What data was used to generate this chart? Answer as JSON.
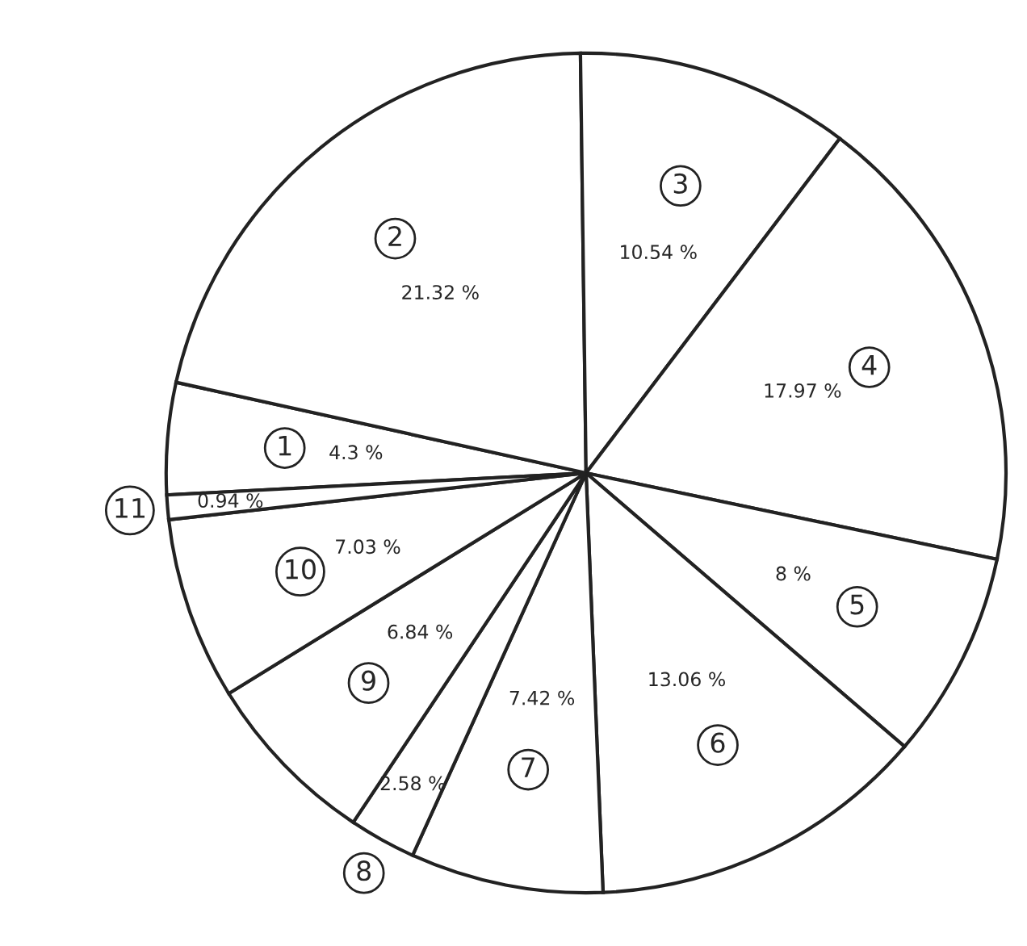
{
  "chart_data": {
    "type": "pie",
    "categories": [
      "1",
      "2",
      "3",
      "4",
      "5",
      "6",
      "7",
      "8",
      "9",
      "10",
      "11"
    ],
    "values": [
      4.3,
      21.32,
      10.54,
      17.97,
      8,
      13.06,
      7.42,
      2.58,
      6.84,
      7.03,
      0.94
    ],
    "colors": [
      "#ffffff",
      "#ffffff",
      "#ffffff",
      "#ffffff",
      "#ffffff",
      "#ffffff",
      "#ffffff",
      "#ffffff",
      "#ffffff",
      "#ffffff",
      "#ffffff"
    ],
    "value_labels": [
      "4.3 %",
      "21.32 %",
      "10.54 %",
      "17.97 %",
      "8 %",
      "13.06 %",
      "7.42 %",
      "2.58 %",
      "6.84 %",
      "7.03 %",
      "0.94 %"
    ]
  }
}
